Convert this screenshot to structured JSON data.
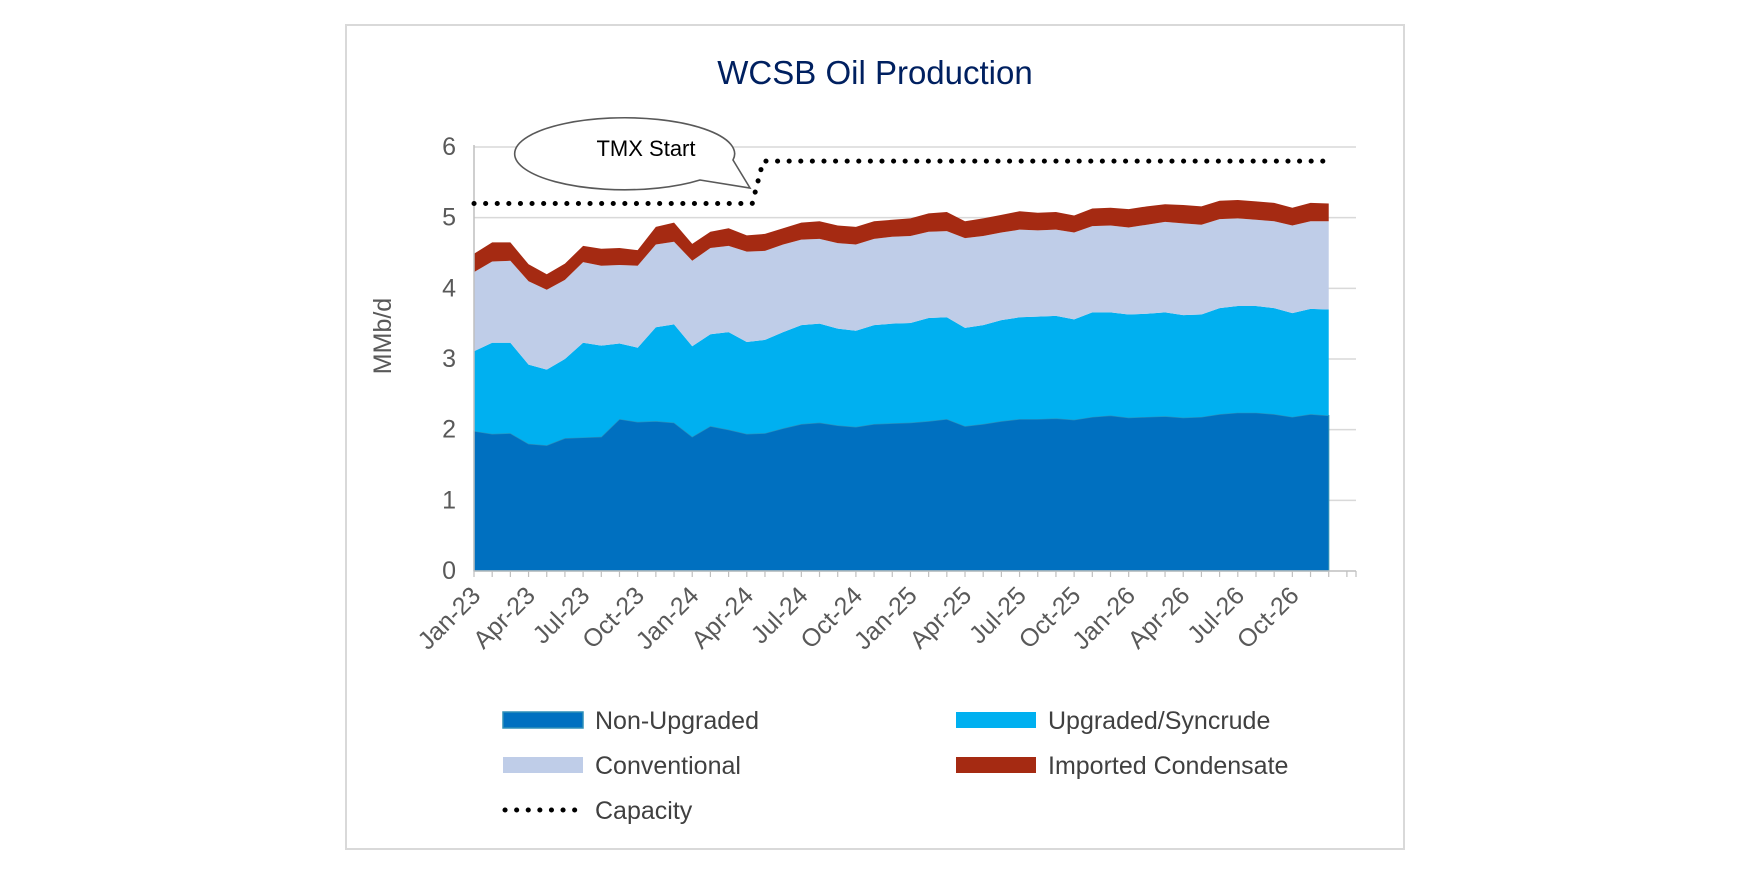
{
  "chart_data": {
    "type": "area",
    "title": "WCSB Oil Production",
    "ylabel": "MMb/d",
    "xlabel": "",
    "ylim": [
      0,
      6
    ],
    "yticks": [
      0,
      1,
      2,
      3,
      4,
      5,
      6
    ],
    "x_tick_labels": [
      "Jan-23",
      "Apr-23",
      "Jul-23",
      "Oct-23",
      "Jan-24",
      "Apr-24",
      "Jul-24",
      "Oct-24",
      "Jan-25",
      "Apr-25",
      "Jul-25",
      "Oct-25",
      "Jan-26",
      "Apr-26",
      "Jul-26",
      "Oct-26"
    ],
    "x_start": "Jan-23",
    "grid": true,
    "legend_position": "bottom",
    "annotation": "TMX Start",
    "colors": {
      "non_upgraded": "#0070c0",
      "upgraded": "#00b0f0",
      "conventional": "#bfcde8",
      "condensate": "#a52a12",
      "capacity": "#000000",
      "title": "#002060"
    },
    "series": [
      {
        "name": "Non-Upgraded",
        "values": [
          1.98,
          1.94,
          1.95,
          1.8,
          1.78,
          1.88,
          1.89,
          1.9,
          2.15,
          2.11,
          2.12,
          2.1,
          1.9,
          2.05,
          2.0,
          1.94,
          1.95,
          2.02,
          2.08,
          2.1,
          2.06,
          2.04,
          2.08,
          2.09,
          2.1,
          2.12,
          2.15,
          2.05,
          2.08,
          2.12,
          2.15,
          2.15,
          2.16,
          2.14,
          2.18,
          2.2,
          2.17,
          2.18,
          2.19,
          2.17,
          2.18,
          2.22,
          2.24,
          2.24,
          2.22,
          2.18,
          2.22,
          2.2
        ]
      },
      {
        "name": "Upgraded/Syncrude",
        "values": [
          1.13,
          1.29,
          1.28,
          1.12,
          1.07,
          1.12,
          1.34,
          1.29,
          1.07,
          1.05,
          1.33,
          1.39,
          1.28,
          1.3,
          1.38,
          1.3,
          1.32,
          1.36,
          1.4,
          1.4,
          1.37,
          1.36,
          1.4,
          1.41,
          1.41,
          1.46,
          1.44,
          1.39,
          1.4,
          1.43,
          1.44,
          1.45,
          1.45,
          1.42,
          1.48,
          1.46,
          1.46,
          1.46,
          1.47,
          1.45,
          1.45,
          1.5,
          1.51,
          1.51,
          1.5,
          1.47,
          1.49,
          1.5
        ]
      },
      {
        "name": "Conventional",
        "values": [
          1.12,
          1.15,
          1.16,
          1.18,
          1.13,
          1.12,
          1.14,
          1.13,
          1.11,
          1.16,
          1.17,
          1.17,
          1.21,
          1.22,
          1.22,
          1.28,
          1.26,
          1.24,
          1.21,
          1.2,
          1.21,
          1.22,
          1.22,
          1.23,
          1.23,
          1.22,
          1.22,
          1.27,
          1.26,
          1.24,
          1.24,
          1.22,
          1.22,
          1.23,
          1.22,
          1.23,
          1.23,
          1.26,
          1.28,
          1.3,
          1.27,
          1.26,
          1.24,
          1.22,
          1.23,
          1.24,
          1.24,
          1.25
        ]
      },
      {
        "name": "Imported Condensate",
        "values": [
          0.26,
          0.27,
          0.26,
          0.24,
          0.22,
          0.23,
          0.23,
          0.24,
          0.24,
          0.22,
          0.25,
          0.27,
          0.24,
          0.23,
          0.25,
          0.23,
          0.24,
          0.23,
          0.24,
          0.25,
          0.25,
          0.25,
          0.25,
          0.24,
          0.25,
          0.26,
          0.27,
          0.24,
          0.25,
          0.25,
          0.26,
          0.25,
          0.25,
          0.24,
          0.25,
          0.25,
          0.26,
          0.26,
          0.25,
          0.26,
          0.26,
          0.26,
          0.26,
          0.26,
          0.26,
          0.25,
          0.26,
          0.25
        ]
      },
      {
        "name": "Capacity",
        "values": [
          5.2,
          5.2,
          5.2,
          5.2,
          5.2,
          5.2,
          5.2,
          5.2,
          5.2,
          5.2,
          5.2,
          5.2,
          5.2,
          5.2,
          5.2,
          5.2,
          5.8,
          5.8,
          5.8,
          5.8,
          5.8,
          5.8,
          5.8,
          5.8,
          5.8,
          5.8,
          5.8,
          5.8,
          5.8,
          5.8,
          5.8,
          5.8,
          5.8,
          5.8,
          5.8,
          5.8,
          5.8,
          5.8,
          5.8,
          5.8,
          5.8,
          5.8,
          5.8,
          5.8,
          5.8,
          5.8,
          5.8,
          5.8
        ]
      }
    ],
    "legend": [
      {
        "label": "Non-Upgraded",
        "series": "Non-Upgraded"
      },
      {
        "label": "Upgraded/Syncrude",
        "series": "Upgraded/Syncrude"
      },
      {
        "label": "Conventional",
        "series": "Conventional"
      },
      {
        "label": "Imported Condensate",
        "series": "Imported Condensate"
      },
      {
        "label": "Capacity",
        "series": "Capacity"
      }
    ]
  }
}
